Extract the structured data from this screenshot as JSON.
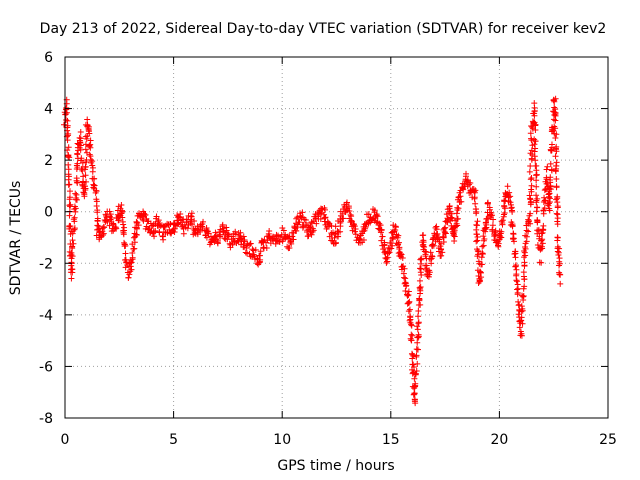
{
  "chart_data": {
    "type": "scatter",
    "title": "Day 213 of 2022, Sidereal Day-to-day VTEC variation (SDTVAR) for receiver kev2",
    "xlabel": "GPS time / hours",
    "ylabel": "SDTVAR / TECUs",
    "xlim": [
      0,
      25
    ],
    "ylim": [
      -8,
      6
    ],
    "xticks": [
      0,
      5,
      10,
      15,
      20,
      25
    ],
    "yticks": [
      -8,
      -6,
      -4,
      -2,
      0,
      2,
      4,
      6
    ],
    "grid": true,
    "marker": "+",
    "series": [
      {
        "name": "SDTVAR",
        "color": "#ff0000",
        "trace": [
          [
            0.0,
            3.6
          ],
          [
            0.05,
            4.2
          ],
          [
            0.12,
            2.8
          ],
          [
            0.18,
            1.2
          ],
          [
            0.25,
            -1.2
          ],
          [
            0.3,
            -2.5
          ],
          [
            0.4,
            -0.5
          ],
          [
            0.5,
            0.6
          ],
          [
            0.6,
            2.5
          ],
          [
            0.7,
            2.9
          ],
          [
            0.8,
            1.5
          ],
          [
            0.9,
            0.5
          ],
          [
            1.0,
            3.5
          ],
          [
            1.1,
            3.0
          ],
          [
            1.2,
            2.0
          ],
          [
            1.3,
            1.2
          ],
          [
            1.4,
            0.8
          ],
          [
            1.5,
            -0.8
          ],
          [
            1.6,
            -1.0
          ],
          [
            1.8,
            -0.5
          ],
          [
            2.0,
            -0.2
          ],
          [
            2.2,
            -0.6
          ],
          [
            2.4,
            -0.3
          ],
          [
            2.6,
            0.2
          ],
          [
            2.7,
            -0.8
          ],
          [
            2.8,
            -1.8
          ],
          [
            2.9,
            -2.4
          ],
          [
            3.0,
            -2.2
          ],
          [
            3.1,
            -1.6
          ],
          [
            3.2,
            -1.0
          ],
          [
            3.4,
            -0.2
          ],
          [
            3.6,
            0.0
          ],
          [
            3.8,
            -0.6
          ],
          [
            4.0,
            -0.8
          ],
          [
            4.2,
            -0.4
          ],
          [
            4.5,
            -0.9
          ],
          [
            4.8,
            -0.5
          ],
          [
            5.0,
            -0.7
          ],
          [
            5.2,
            -0.2
          ],
          [
            5.5,
            -0.6
          ],
          [
            5.8,
            -0.3
          ],
          [
            6.0,
            -0.8
          ],
          [
            6.3,
            -0.5
          ],
          [
            6.6,
            -1.0
          ],
          [
            7.0,
            -1.1
          ],
          [
            7.3,
            -0.7
          ],
          [
            7.6,
            -1.2
          ],
          [
            8.0,
            -0.9
          ],
          [
            8.3,
            -1.3
          ],
          [
            8.6,
            -1.5
          ],
          [
            8.9,
            -1.9
          ],
          [
            9.1,
            -1.3
          ],
          [
            9.4,
            -1.0
          ],
          [
            9.7,
            -1.1
          ],
          [
            10.0,
            -0.9
          ],
          [
            10.3,
            -1.2
          ],
          [
            10.6,
            -0.6
          ],
          [
            10.9,
            -0.2
          ],
          [
            11.2,
            -0.8
          ],
          [
            11.5,
            -0.4
          ],
          [
            11.8,
            0.1
          ],
          [
            12.1,
            -0.5
          ],
          [
            12.4,
            -1.1
          ],
          [
            12.7,
            -0.3
          ],
          [
            13.0,
            0.2
          ],
          [
            13.3,
            -0.6
          ],
          [
            13.6,
            -1.2
          ],
          [
            13.9,
            -0.4
          ],
          [
            14.2,
            0.0
          ],
          [
            14.5,
            -0.6
          ],
          [
            14.8,
            -1.8
          ],
          [
            15.0,
            -1.2
          ],
          [
            15.2,
            -0.5
          ],
          [
            15.4,
            -1.6
          ],
          [
            15.6,
            -2.4
          ],
          [
            15.8,
            -3.2
          ],
          [
            15.95,
            -4.8
          ],
          [
            16.05,
            -6.5
          ],
          [
            16.1,
            -7.4
          ],
          [
            16.2,
            -5.5
          ],
          [
            16.3,
            -3.5
          ],
          [
            16.4,
            -2.0
          ],
          [
            16.5,
            -1.0
          ],
          [
            16.7,
            -2.5
          ],
          [
            16.9,
            -1.5
          ],
          [
            17.1,
            -0.8
          ],
          [
            17.3,
            -1.6
          ],
          [
            17.5,
            -0.8
          ],
          [
            17.7,
            0.2
          ],
          [
            17.9,
            -1.0
          ],
          [
            18.1,
            0.2
          ],
          [
            18.3,
            0.9
          ],
          [
            18.5,
            1.2
          ],
          [
            18.7,
            0.8
          ],
          [
            18.9,
            0.6
          ],
          [
            19.0,
            -1.5
          ],
          [
            19.1,
            -2.8
          ],
          [
            19.3,
            -0.8
          ],
          [
            19.5,
            0.3
          ],
          [
            19.7,
            -0.5
          ],
          [
            19.9,
            -1.3
          ],
          [
            20.1,
            -0.6
          ],
          [
            20.3,
            0.8
          ],
          [
            20.5,
            0.4
          ],
          [
            20.7,
            -1.5
          ],
          [
            20.8,
            -2.5
          ],
          [
            20.9,
            -3.5
          ],
          [
            21.0,
            -4.8
          ],
          [
            21.1,
            -3.0
          ],
          [
            21.2,
            -1.0
          ],
          [
            21.4,
            -0.2
          ],
          [
            21.5,
            3.2
          ],
          [
            21.6,
            4.0
          ],
          [
            21.7,
            0.6
          ],
          [
            21.8,
            -1.2
          ],
          [
            21.9,
            -1.8
          ],
          [
            22.0,
            -0.8
          ],
          [
            22.1,
            0.6
          ],
          [
            22.2,
            1.5
          ],
          [
            22.3,
            0.0
          ],
          [
            22.4,
            2.5
          ],
          [
            22.5,
            3.8
          ],
          [
            22.55,
            4.3
          ],
          [
            22.6,
            2.0
          ],
          [
            22.7,
            -1.3
          ],
          [
            22.8,
            -2.8
          ]
        ]
      }
    ]
  }
}
